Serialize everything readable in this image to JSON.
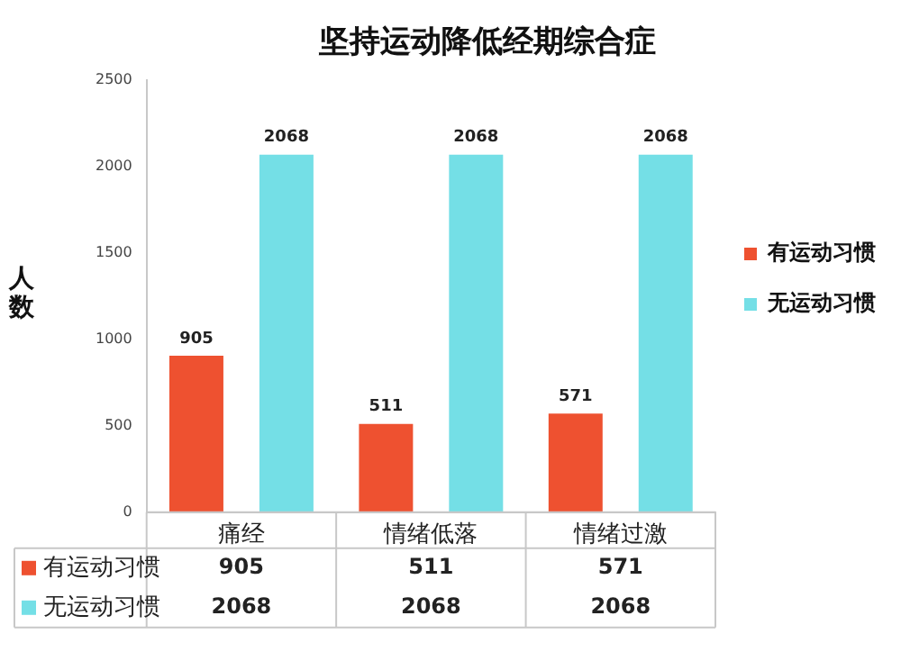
{
  "chart_data": {
    "type": "bar",
    "title": "坚持运动降低经期综合症",
    "ylabel": "人数",
    "categories": [
      "痛经",
      "情绪低落",
      "情绪过激"
    ],
    "series": [
      {
        "name": "有运动习惯",
        "color": "#ee5130",
        "values": [
          905,
          511,
          571
        ],
        "value_labels": [
          "905",
          "511",
          "571"
        ]
      },
      {
        "name": "无运动习惯",
        "color": "#74dfe6",
        "values": [
          2068,
          2068,
          2068
        ],
        "value_labels": [
          "2068",
          "2068",
          "2068"
        ]
      }
    ],
    "ylim": [
      0,
      2500
    ],
    "yticks": [
      0,
      500,
      1000,
      1500,
      2000,
      2500
    ],
    "grid": false,
    "legend": "right",
    "annotations": [
      "905",
      "511",
      "571",
      "2068",
      "2068",
      "2068"
    ]
  }
}
